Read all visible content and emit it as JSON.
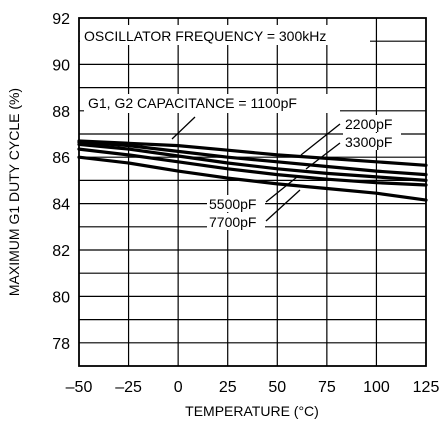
{
  "chart_data": {
    "type": "line",
    "title": "",
    "xlabel": "TEMPERATURE (°C)",
    "ylabel": "MAXIMUM G1 DUTY CYCLE (%)",
    "xlim": [
      -50,
      125
    ],
    "ylim": [
      77,
      92
    ],
    "x_ticks": [
      -50,
      -25,
      0,
      25,
      50,
      75,
      100,
      125
    ],
    "x_tick_labels": [
      "–50",
      "–25",
      "0",
      "25",
      "50",
      "75",
      "100",
      "125"
    ],
    "y_ticks": [
      78,
      80,
      82,
      84,
      86,
      88,
      90,
      92
    ],
    "y_tick_labels": [
      "78",
      "80",
      "82",
      "84",
      "86",
      "88",
      "90",
      "92"
    ],
    "grid": true,
    "x": [
      -50,
      -25,
      0,
      25,
      50,
      75,
      100,
      125
    ],
    "series": [
      {
        "name": "1100pF",
        "values": [
          86.7,
          86.6,
          86.5,
          86.3,
          86.1,
          85.95,
          85.8,
          85.65
        ]
      },
      {
        "name": "2200pF",
        "values": [
          86.65,
          86.5,
          86.25,
          86.0,
          85.8,
          85.6,
          85.4,
          85.25
        ]
      },
      {
        "name": "3300pF",
        "values": [
          86.55,
          86.35,
          86.05,
          85.75,
          85.5,
          85.3,
          85.15,
          85.0
        ]
      },
      {
        "name": "5500pF",
        "values": [
          86.35,
          86.1,
          85.8,
          85.5,
          85.25,
          85.05,
          84.9,
          84.8
        ]
      },
      {
        "name": "7700pF",
        "values": [
          86.0,
          85.75,
          85.4,
          85.1,
          84.85,
          84.65,
          84.45,
          84.15
        ]
      }
    ],
    "annotations": {
      "oscillator": "OSCILLATOR FREQUENCY = 300kHz",
      "capacitance": "G1, G2 CAPACITANCE = 1100pF",
      "c2200": "2200pF",
      "c3300": "3300pF",
      "c5500": "5500pF",
      "c7700": "7700pF"
    }
  }
}
